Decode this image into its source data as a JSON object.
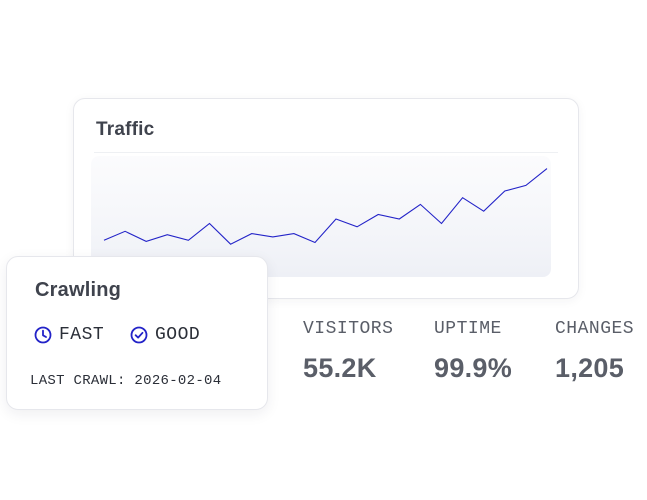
{
  "traffic": {
    "title": "Traffic",
    "line_color": "#2323c8",
    "series": [
      0.62,
      0.78,
      0.6,
      0.72,
      0.62,
      0.92,
      0.55,
      0.74,
      0.68,
      0.74,
      0.58,
      1.0,
      0.86,
      1.08,
      1.0,
      1.26,
      0.92,
      1.38,
      1.14,
      1.5,
      1.6,
      1.9
    ],
    "y_range": [
      0,
      2.0
    ]
  },
  "crawling": {
    "title": "Crawling",
    "accent_color": "#2323c8",
    "badges": [
      {
        "icon": "clock-icon",
        "label": "FAST"
      },
      {
        "icon": "check-circle-icon",
        "label": "GOOD"
      }
    ],
    "last_crawl": "LAST CRAWL: 2026-02-04"
  },
  "stats": [
    {
      "label": "VISITORS",
      "value": "55.2K"
    },
    {
      "label": "UPTIME",
      "value": "99.9%"
    },
    {
      "label": "CHANGES",
      "value": "1,205"
    }
  ]
}
